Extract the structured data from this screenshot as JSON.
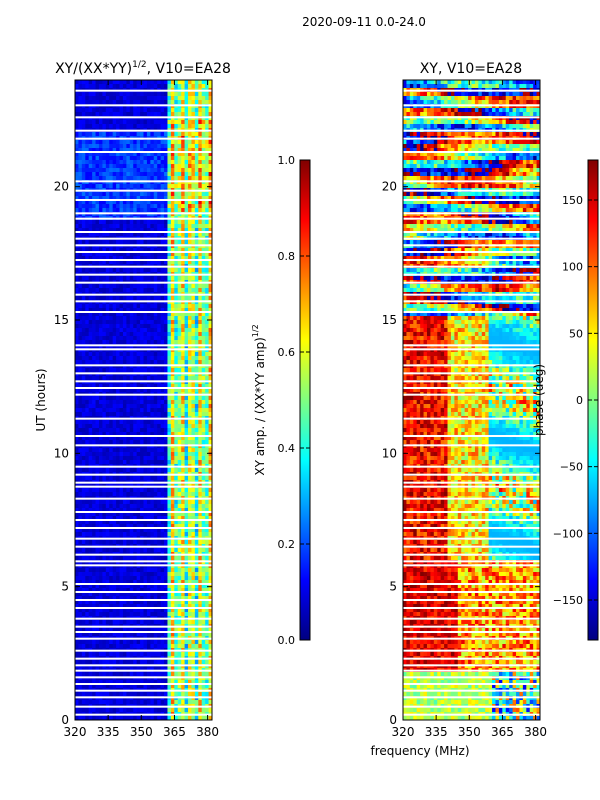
{
  "suptitle": "2020-09-11 0.0-24.0",
  "shared_xlabel": "frequency (MHz)",
  "colors": {
    "jet": [
      "#000080",
      "#0000ff",
      "#0080ff",
      "#00ffff",
      "#80ff80",
      "#ffff00",
      "#ff8000",
      "#ff0000",
      "#800000"
    ],
    "frame": "#000000",
    "flag": "#ffffff"
  },
  "chart_data": [
    {
      "type": "heatmap",
      "title": "XY/(XX*YY)",
      "title_sup": "1/2",
      "title_suffix": ", V10=EA28",
      "xlabel": "",
      "ylabel": "UT (hours)",
      "xlim": [
        320,
        382
      ],
      "ylim": [
        0,
        24
      ],
      "xticks": [
        320,
        335,
        350,
        365,
        380
      ],
      "yticks": [
        0,
        5,
        10,
        15,
        20
      ],
      "grid": false,
      "pattern": "amplitude",
      "colorbar": {
        "label": "XY amp. / (XX*YY amp)",
        "label_sup": "1/2",
        "range": [
          0.0,
          1.0
        ],
        "ticks": [
          "0.0",
          "0.2",
          "0.4",
          "0.6",
          "0.8",
          "1.0"
        ]
      }
    },
    {
      "type": "heatmap",
      "title": "XY, V10=EA28",
      "xlabel": "frequency (MHz)",
      "ylabel": "",
      "xlim": [
        320,
        382
      ],
      "ylim": [
        0,
        24
      ],
      "xticks": [
        320,
        335,
        350,
        365,
        380
      ],
      "yticks": [
        0,
        5,
        10,
        15,
        20
      ],
      "grid": false,
      "pattern": "phase",
      "colorbar": {
        "label": "phase (deg)",
        "range": [
          -180,
          180
        ],
        "ticks": [
          "−150",
          "−100",
          "−50",
          "0",
          "50",
          "100",
          "150"
        ]
      }
    }
  ],
  "flagged_ut_hours": [
    23.6,
    23.05,
    22.6,
    22.1,
    21.8,
    21.3,
    20.2,
    19.85,
    19.5,
    19.0,
    18.8,
    18.3,
    18.05,
    17.8,
    17.55,
    17.25,
    17.0,
    16.7,
    16.4,
    15.95,
    15.7,
    15.3,
    14.05,
    13.9,
    13.3,
    13.0,
    12.7,
    12.45,
    12.2,
    11.3,
    10.65,
    10.3,
    9.5,
    9.2,
    8.9,
    8.75,
    8.3,
    7.8,
    7.5,
    7.2,
    6.8,
    6.5,
    6.2,
    5.95,
    5.8,
    5.1,
    4.8,
    4.5,
    4.2,
    3.8,
    3.5,
    3.3,
    3.05,
    2.6,
    2.3,
    2.05,
    1.85,
    1.6,
    1.35,
    1.1,
    0.85,
    0.5,
    0.2
  ]
}
